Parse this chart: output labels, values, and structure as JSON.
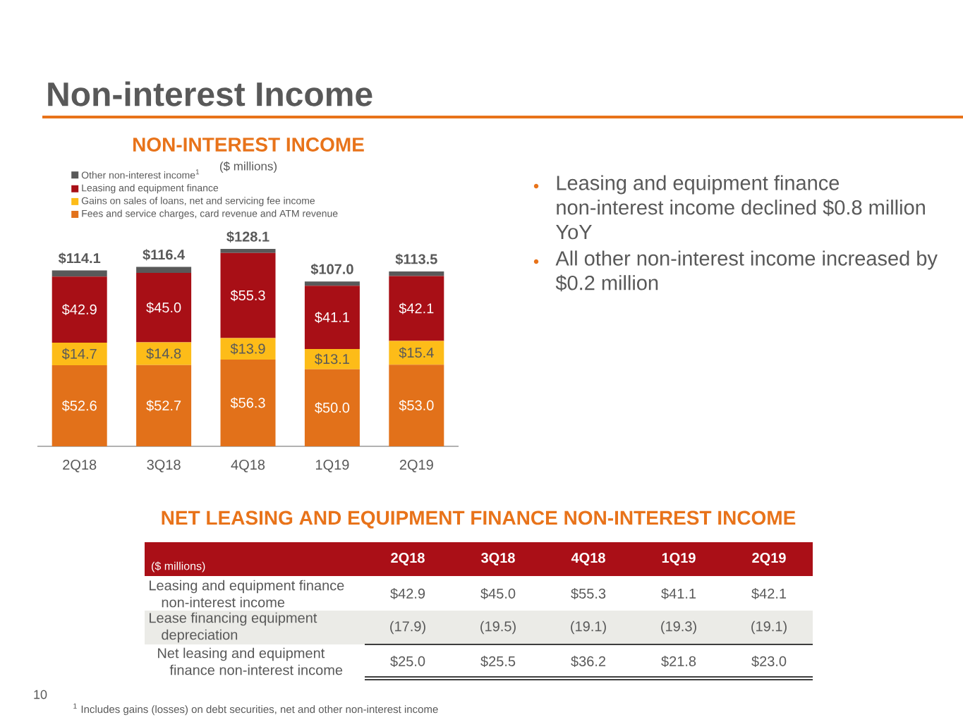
{
  "chart_data": [
    {
      "type": "bar",
      "title": "NON-INTEREST INCOME",
      "subtitle": "($ millions)",
      "stacked": true,
      "legend": "top left",
      "categories": [
        "2Q18",
        "3Q18",
        "4Q18",
        "1Q19",
        "2Q19"
      ],
      "series": [
        {
          "name": "Fees and service charges, card revenue and ATM revenue",
          "color": "#e2711a",
          "values": [
            52.6,
            52.7,
            56.3,
            50.0,
            53.0
          ],
          "value_labels": [
            "$52.6",
            "$52.7",
            "$56.3",
            "$50.0",
            "$53.0"
          ]
        },
        {
          "name": "Gains on sales of loans, net and servicing fee income",
          "color": "#fdbc18",
          "values": [
            14.7,
            14.8,
            13.9,
            13.1,
            15.4
          ],
          "value_labels": [
            "$14.7",
            "$14.8",
            "$13.9",
            "$13.1",
            "$15.4"
          ]
        },
        {
          "name": "Leasing and equipment finance",
          "color": "#a80f16",
          "values": [
            42.9,
            45.0,
            55.3,
            41.1,
            42.1
          ],
          "value_labels": [
            "$42.9",
            "$45.0",
            "$55.3",
            "$41.1",
            "$42.1"
          ]
        },
        {
          "name": "Other non-interest income$^{1}$",
          "color": "#595959",
          "values": [
            3.9,
            3.9,
            2.6,
            2.8,
            3.0
          ]
        }
      ],
      "totals": [
        "$114.1",
        "$116.4",
        "$128.1",
        "$107.0",
        "$113.5"
      ],
      "annotations": [
        "Non-interest Income",
        "Leasing and equipment finance non-interest income declined $0.8 million YoY",
        "All other non-interest income increased by $0.2 million",
        "$^{1}$ Includes gains (losses) on debt securities, net and other non-interest income",
        "10"
      ]
    },
    {
      "type": "other",
      "title": "NET LEASING AND EQUIPMENT FINANCE NON-INTEREST INCOME",
      "subtitle": "($ millions)",
      "categories": [
        "2Q18",
        "3Q18",
        "4Q18",
        "1Q19",
        "2Q19"
      ],
      "series": [
        {
          "name": "Leasing and equipment finance non-interest income",
          "values": [
            42.9,
            45.0,
            55.3,
            41.1,
            42.1
          ],
          "value_labels": [
            "$42.9",
            "$45.0",
            "$55.3",
            "$41.1",
            "$42.1"
          ]
        },
        {
          "name": "Lease financing equipment depreciation",
          "values": [
            -17.9,
            -19.5,
            -19.1,
            -19.3,
            -19.1
          ],
          "value_labels": [
            "(17.9)",
            "(19.5)",
            "(19.1)",
            "(19.3)",
            "(19.1)"
          ]
        },
        {
          "name": "Net leasing and equipment finance non-interest income",
          "values": [
            25.0,
            25.5,
            36.2,
            21.8,
            23.0
          ],
          "value_labels": [
            "$25.0",
            "$25.5",
            "$36.2",
            "$21.8",
            "$23.0"
          ]
        }
      ]
    }
  ]
}
